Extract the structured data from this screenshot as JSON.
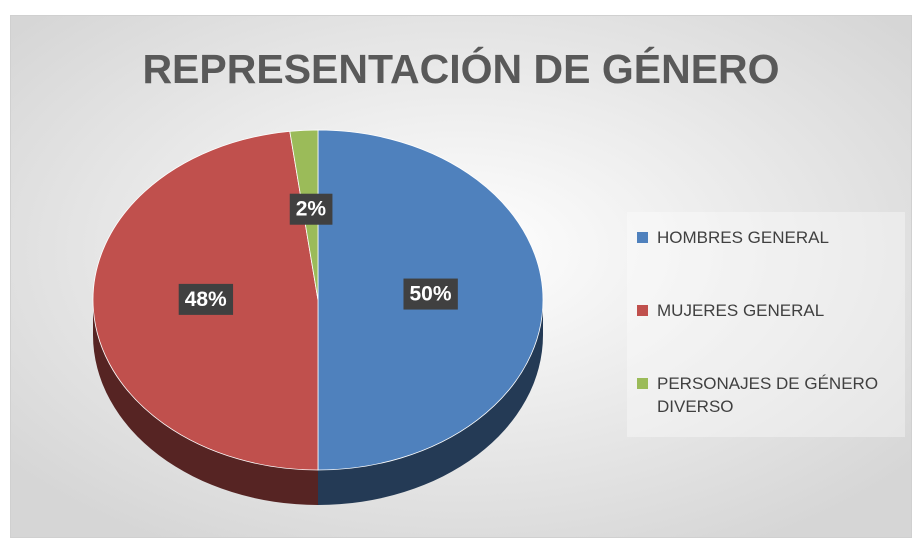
{
  "chart_data": {
    "type": "pie3d",
    "title": "REPRESENTACIÓN DE GÉNERO",
    "categories": [
      "HOMBRES GENERAL",
      "MUJERES GENERAL",
      "PERSONAJES DE GÉNERO DIVERSO"
    ],
    "values": [
      50,
      48,
      2
    ],
    "value_labels": [
      "50%",
      "48%",
      "2%"
    ],
    "colors": [
      "#4f81bd",
      "#c0504d",
      "#9bbb59"
    ],
    "legend": "right"
  }
}
